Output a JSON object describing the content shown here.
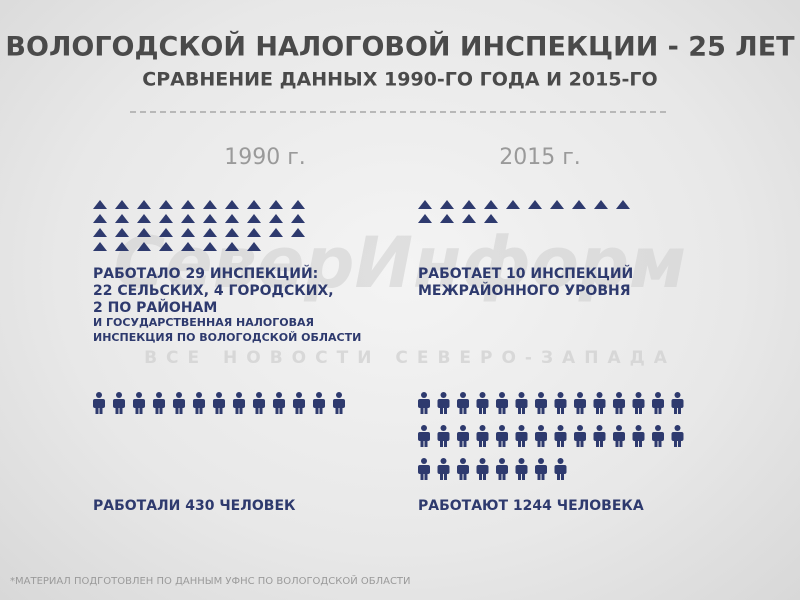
{
  "header": {
    "title": "ВОЛОГОДСКОЙ НАЛОГОВОЙ ИНСПЕКЦИИ - 25 ЛЕТ",
    "subtitle": "СРАВНЕНИЕ ДАННЫХ 1990-ГО ГОДА И 2015-ГО"
  },
  "columns": [
    {
      "year": "1990 г.",
      "inspections": [
        "РАБОТАЛО 29 ИНСПЕКЦИЙ:",
        "22 СЕЛЬСКИХ, 4 ГОРОДСКИХ,",
        "2 ПО РАЙОНАМ",
        "И ГОСУДАРСТВЕННАЯ НАЛОГОВАЯ",
        "ИНСПЕКЦИЯ ПО ВОЛОГОДСКОЙ ОБЛАСТИ"
      ],
      "staff": "РАБОТАЛИ 430 ЧЕЛОВЕК"
    },
    {
      "year": "2015 г.",
      "inspections": [
        "РАБОТАЕТ 10 ИНСПЕКЦИЙ",
        "МЕЖРАЙОННОГО УРОВНЯ"
      ],
      "staff": "РАБОТАЮТ 1244 ЧЕЛОВЕКА"
    }
  ],
  "watermark": {
    "brand": "СеверИнформ",
    "tagline": "ВСЕ НОВОСТИ СЕВЕРО-ЗАПАДА"
  },
  "footnote": "*МАТЕРИАЛ ПОДГОТОВЛЕН ПО ДАННЫМ УФНС ПО ВОЛОГОДСКОЙ ОБЛАСТИ"
}
